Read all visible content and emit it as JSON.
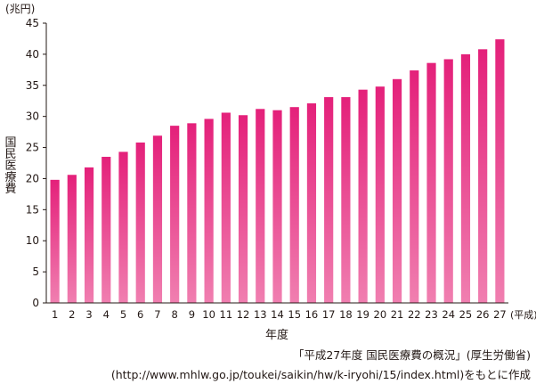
{
  "chart_data": {
    "type": "bar",
    "title": "",
    "categories": [
      "1",
      "2",
      "3",
      "4",
      "5",
      "6",
      "7",
      "8",
      "9",
      "10",
      "11",
      "12",
      "13",
      "14",
      "15",
      "16",
      "17",
      "18",
      "19",
      "20",
      "21",
      "22",
      "23",
      "24",
      "25",
      "26",
      "27"
    ],
    "values": [
      19.8,
      20.6,
      21.8,
      23.5,
      24.3,
      25.8,
      26.9,
      28.5,
      28.9,
      29.6,
      30.6,
      30.2,
      31.2,
      31.0,
      31.5,
      32.1,
      33.1,
      33.1,
      34.3,
      34.8,
      36.0,
      37.4,
      38.6,
      39.2,
      40.0,
      40.8,
      42.4
    ],
    "xlabel": "年度",
    "x_unit": "(平成)",
    "ylabel": "国民医療費",
    "y_unit": "(兆円)",
    "ylim": [
      0,
      45
    ],
    "yticks": [
      0,
      5,
      10,
      15,
      20,
      25,
      30,
      35,
      40,
      45
    ],
    "grid": false,
    "bar_color_top": "#e4207a",
    "bar_color_bottom": "#f07fb0"
  },
  "source": {
    "line1": "「平成27年度 国民医療費の概況」(厚生労働省)",
    "line2": "(http://www.mhlw.go.jp/toukei/saikin/hw/k-iryohi/15/index.html)をもとに作成"
  }
}
